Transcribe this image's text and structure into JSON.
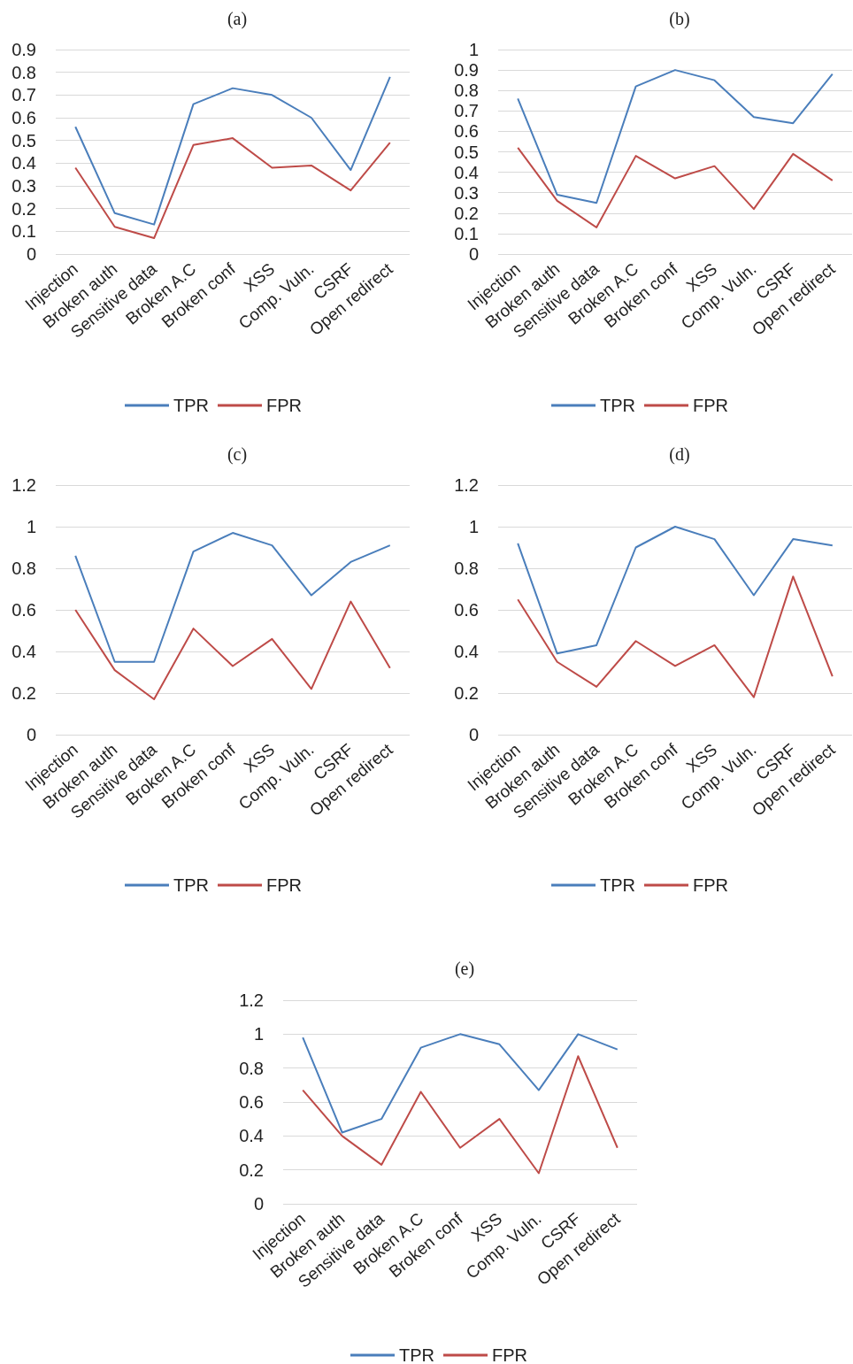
{
  "chart_data": [
    {
      "type": "line",
      "title": "(a)",
      "categories": [
        "Injection",
        "Broken auth",
        "Sensitive data",
        "Broken A.C",
        "Broken conf",
        "XSS",
        "Comp. Vuln.",
        "CSRF",
        "Open redirect"
      ],
      "series": [
        {
          "name": "TPR",
          "color": "#4a7ebb",
          "values": [
            0.56,
            0.18,
            0.13,
            0.66,
            0.73,
            0.7,
            0.6,
            0.37,
            0.78
          ]
        },
        {
          "name": "FPR",
          "color": "#be4b48",
          "values": [
            0.38,
            0.12,
            0.07,
            0.48,
            0.51,
            0.38,
            0.39,
            0.28,
            0.49
          ]
        }
      ],
      "ylim": [
        0,
        0.9
      ],
      "yticks": [
        0,
        0.1,
        0.2,
        0.3,
        0.4,
        0.5,
        0.6,
        0.7,
        0.8,
        0.9
      ],
      "grid": "y",
      "legend": "bottom",
      "marker": "none"
    },
    {
      "type": "line",
      "title": "(b)",
      "categories": [
        "Injection",
        "Broken auth",
        "Sensitive data",
        "Broken A.C",
        "Broken conf",
        "XSS",
        "Comp. Vuln.",
        "CSRF",
        "Open redirect"
      ],
      "series": [
        {
          "name": "TPR",
          "color": "#4a7ebb",
          "values": [
            0.76,
            0.29,
            0.25,
            0.82,
            0.9,
            0.85,
            0.67,
            0.64,
            0.88
          ]
        },
        {
          "name": "FPR",
          "color": "#be4b48",
          "values": [
            0.52,
            0.26,
            0.13,
            0.48,
            0.37,
            0.43,
            0.22,
            0.49,
            0.36
          ]
        }
      ],
      "ylim": [
        0,
        1
      ],
      "yticks": [
        0,
        0.1,
        0.2,
        0.3,
        0.4,
        0.5,
        0.6,
        0.7,
        0.8,
        0.9,
        1
      ],
      "grid": "y",
      "legend": "bottom",
      "marker": "none"
    },
    {
      "type": "line",
      "title": "(c)",
      "categories": [
        "Injection",
        "Broken auth",
        "Sensitive data",
        "Broken A.C",
        "Broken conf",
        "XSS",
        "Comp. Vuln.",
        "CSRF",
        "Open redirect"
      ],
      "series": [
        {
          "name": "TPR",
          "color": "#4a7ebb",
          "values": [
            0.86,
            0.35,
            0.35,
            0.88,
            0.97,
            0.91,
            0.67,
            0.83,
            0.91
          ]
        },
        {
          "name": "FPR",
          "color": "#be4b48",
          "values": [
            0.6,
            0.31,
            0.17,
            0.51,
            0.33,
            0.46,
            0.22,
            0.64,
            0.32
          ]
        }
      ],
      "ylim": [
        0,
        1.2
      ],
      "yticks": [
        0,
        0.2,
        0.4,
        0.6,
        0.8,
        1,
        1.2
      ],
      "grid": "y",
      "legend": "bottom",
      "marker": "none"
    },
    {
      "type": "line",
      "title": "(d)",
      "categories": [
        "Injection",
        "Broken auth",
        "Sensitive data",
        "Broken A.C",
        "Broken conf",
        "XSS",
        "Comp. Vuln.",
        "CSRF",
        "Open redirect"
      ],
      "series": [
        {
          "name": "TPR",
          "color": "#4a7ebb",
          "values": [
            0.92,
            0.39,
            0.43,
            0.9,
            1.0,
            0.94,
            0.67,
            0.94,
            0.91
          ]
        },
        {
          "name": "FPR",
          "color": "#be4b48",
          "values": [
            0.65,
            0.35,
            0.23,
            0.45,
            0.33,
            0.43,
            0.18,
            0.76,
            0.28
          ]
        }
      ],
      "ylim": [
        0,
        1.2
      ],
      "yticks": [
        0,
        0.2,
        0.4,
        0.6,
        0.8,
        1,
        1.2
      ],
      "grid": "y",
      "legend": "bottom",
      "marker": "none"
    },
    {
      "type": "line",
      "title": "(e)",
      "categories": [
        "Injection",
        "Broken auth",
        "Sensitive data",
        "Broken A.C",
        "Broken conf",
        "XSS",
        "Comp. Vuln.",
        "CSRF",
        "Open redirect"
      ],
      "series": [
        {
          "name": "TPR",
          "color": "#4a7ebb",
          "values": [
            0.98,
            0.42,
            0.5,
            0.92,
            1.0,
            0.94,
            0.67,
            1.0,
            0.91
          ]
        },
        {
          "name": "FPR",
          "color": "#be4b48",
          "values": [
            0.67,
            0.4,
            0.23,
            0.66,
            0.33,
            0.5,
            0.18,
            0.87,
            0.33
          ]
        }
      ],
      "ylim": [
        0,
        1.2
      ],
      "yticks": [
        0,
        0.2,
        0.4,
        0.6,
        0.8,
        1,
        1.2
      ],
      "grid": "y",
      "legend": "bottom",
      "marker": "none"
    }
  ]
}
